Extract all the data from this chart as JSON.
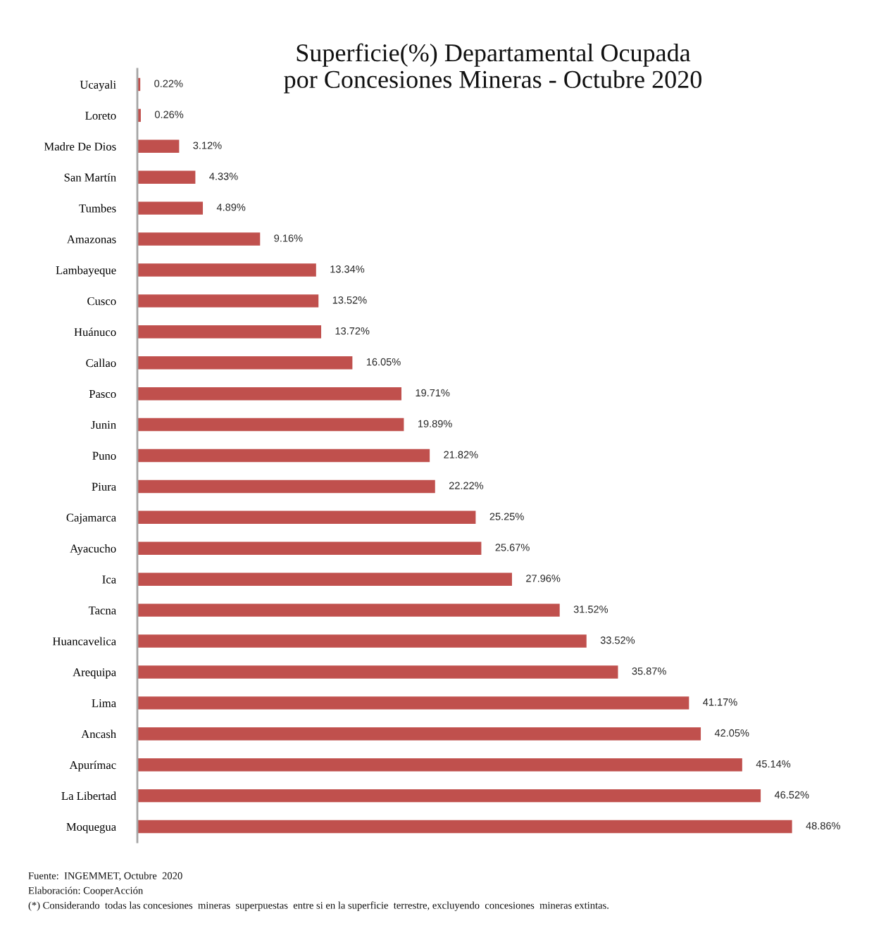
{
  "chart_data": {
    "type": "bar",
    "orientation": "horizontal",
    "title": "Superficie(%) Departamental Ocupada\npor Concesiones Mineras - Octubre 2020",
    "categories": [
      "Ucayali",
      "Loreto",
      "Madre De Dios",
      "San Martín",
      "Tumbes",
      "Amazonas",
      "Lambayeque",
      "Cusco",
      "Huánuco",
      "Callao",
      "Pasco",
      "Junin",
      "Puno",
      "Piura",
      "Cajamarca",
      "Ayacucho",
      "Ica",
      "Tacna",
      "Huancavelica",
      "Arequipa",
      "Lima",
      "Ancash",
      "Apurímac",
      "La Libertad",
      "Moquegua"
    ],
    "values": [
      0.22,
      0.26,
      3.12,
      4.33,
      4.89,
      9.16,
      13.34,
      13.52,
      13.72,
      16.05,
      19.71,
      19.89,
      21.82,
      22.22,
      25.25,
      25.67,
      27.96,
      31.52,
      33.52,
      35.87,
      41.17,
      42.05,
      45.14,
      46.52,
      48.86
    ],
    "value_labels": [
      "0.22%",
      "0.26%",
      "3.12%",
      "4.33%",
      "4.89%",
      "9.16%",
      "13.34%",
      "13.52%",
      "13.72%",
      "16.05%",
      "19.71%",
      "19.89%",
      "21.82%",
      "22.22%",
      "25.25%",
      "25.67%",
      "27.96%",
      "31.52%",
      "33.52%",
      "35.87%",
      "41.17%",
      "42.05%",
      "45.14%",
      "46.52%",
      "48.86%"
    ],
    "color": "#c0504d",
    "tick_labels": "y",
    "annotations": [
      "Fuente:  INGEMMET, Octubre  2020",
      "Elaboración: CooperAcción",
      "(*) Considerando  todas las concesiones  mineras  superpuestas  entre si en la superficie  terrestre, excluyendo  concesiones  mineras extintas."
    ]
  }
}
